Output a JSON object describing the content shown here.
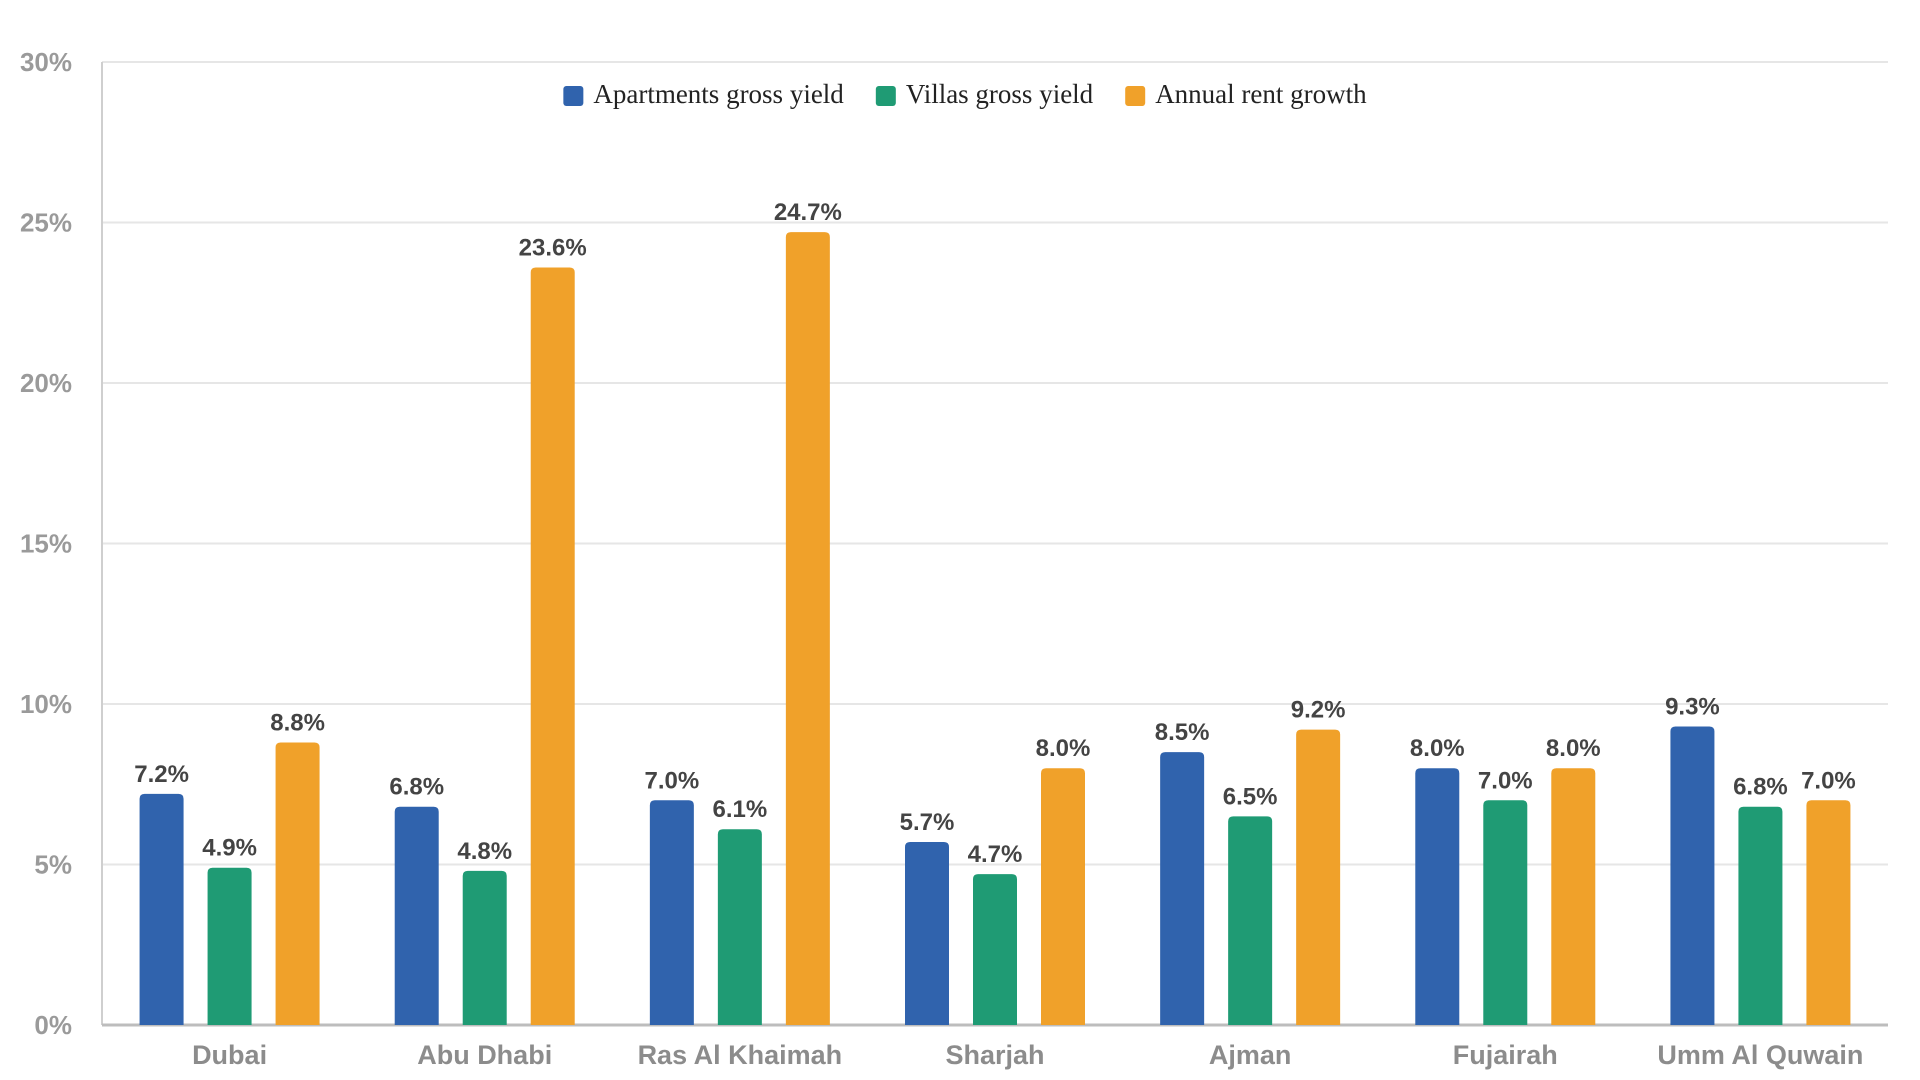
{
  "chart_data": {
    "type": "bar",
    "title": "",
    "xlabel": "",
    "ylabel": "",
    "ylim": [
      0,
      30
    ],
    "yticks": [
      "0%",
      "5%",
      "10%",
      "15%",
      "20%",
      "25%",
      "30%"
    ],
    "ytick_values": [
      0,
      5,
      10,
      15,
      20,
      25,
      30
    ],
    "grid": true,
    "legend_position": "top-center",
    "categories": [
      "Dubai",
      "Abu Dhabi",
      "Ras Al Khaimah",
      "Sharjah",
      "Ajman",
      "Fujairah",
      "Umm Al Quwain"
    ],
    "series": [
      {
        "name": "Apartments gross yield",
        "color": "#3063ad",
        "values": [
          7.2,
          6.8,
          7.0,
          5.7,
          8.5,
          8.0,
          9.3
        ],
        "labels": [
          "7.2%",
          "6.8%",
          "7.0%",
          "5.7%",
          "8.5%",
          "8.0%",
          "9.3%"
        ]
      },
      {
        "name": "Villas gross yield",
        "color": "#1f9b74",
        "values": [
          4.9,
          4.8,
          6.1,
          4.7,
          6.5,
          7.0,
          6.8
        ],
        "labels": [
          "4.9%",
          "4.8%",
          "6.1%",
          "4.7%",
          "6.5%",
          "7.0%",
          "6.8%"
        ]
      },
      {
        "name": "Annual rent growth",
        "color": "#f0a12a",
        "values": [
          8.8,
          23.6,
          24.7,
          8.0,
          9.2,
          8.0,
          7.0
        ],
        "labels": [
          "8.8%",
          "23.6%",
          "24.7%",
          "8.0%",
          "9.2%",
          "8.0%",
          "7.0%"
        ]
      }
    ]
  }
}
